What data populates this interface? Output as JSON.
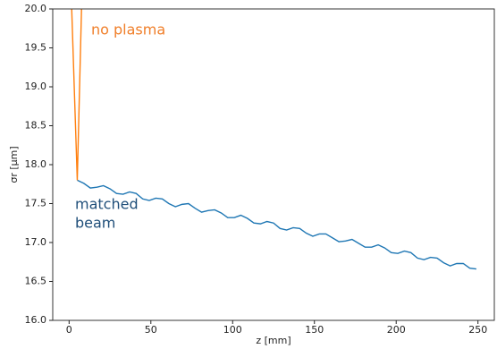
{
  "chart_data": {
    "type": "line",
    "xlabel": "z [mm]",
    "ylabel": "σr [μm]",
    "xlim": [
      -10,
      260
    ],
    "xticks": [
      0,
      50,
      100,
      150,
      200,
      250
    ],
    "ylim": [
      16,
      20
    ],
    "yticks": [
      {
        "value": 16,
        "label": "16.0"
      },
      16.5,
      {
        "value": 17,
        "label": "17.0"
      },
      17.5,
      {
        "value": 18,
        "label": "18.0"
      },
      18.5,
      {
        "value": 19,
        "label": "19.0"
      },
      19.5,
      {
        "value": 20,
        "label": "20.0"
      }
    ],
    "series": [
      {
        "name": "matched beam",
        "color": "#1f77b4",
        "x": [
          5,
          9,
          13,
          17,
          21,
          25,
          29,
          33,
          37,
          41,
          45,
          49,
          53,
          57,
          61,
          65,
          69,
          73,
          77,
          81,
          85,
          89,
          93,
          97,
          101,
          105,
          109,
          113,
          117,
          121,
          125,
          129,
          133,
          137,
          141,
          145,
          149,
          153,
          157,
          161,
          165,
          169,
          173,
          177,
          181,
          185,
          189,
          193,
          197,
          201,
          205,
          209,
          213,
          217,
          221,
          225,
          229,
          233,
          237,
          241,
          245,
          249
        ],
        "values": [
          17.8,
          17.76,
          17.7,
          17.71,
          17.73,
          17.69,
          17.63,
          17.62,
          17.65,
          17.63,
          17.56,
          17.54,
          17.57,
          17.56,
          17.5,
          17.46,
          17.49,
          17.5,
          17.44,
          17.39,
          17.41,
          17.42,
          17.38,
          17.32,
          17.32,
          17.35,
          17.31,
          17.25,
          17.24,
          17.27,
          17.25,
          17.18,
          17.16,
          17.19,
          17.18,
          17.12,
          17.08,
          17.11,
          17.11,
          17.06,
          17.01,
          17.02,
          17.04,
          16.99,
          16.94,
          16.94,
          16.97,
          16.93,
          16.87,
          16.86,
          16.89,
          16.87,
          16.8,
          16.78,
          16.81,
          16.8,
          16.74,
          16.7,
          16.73,
          16.73,
          16.67,
          16.66
        ]
      },
      {
        "name": "no plasma",
        "color": "#ff7f0e",
        "x": [
          1.6,
          5,
          7.6
        ],
        "values": [
          20,
          17.8,
          20
        ]
      }
    ],
    "annotations": [
      {
        "lines": [
          "no plasma"
        ],
        "color": "#f07f2a"
      },
      {
        "lines": [
          "matched",
          "beam"
        ],
        "color": "#1f4e79"
      }
    ]
  }
}
